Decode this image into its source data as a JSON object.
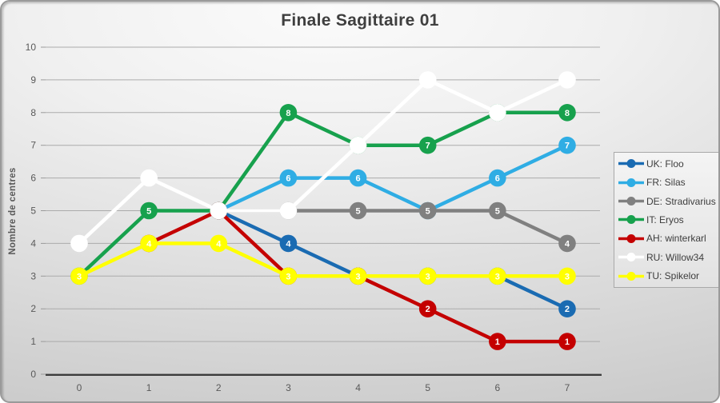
{
  "chart_data": {
    "type": "line",
    "title": "Finale Sagittaire 01",
    "xlabel": "",
    "ylabel": "Nombre de centres",
    "x_ticks": [
      "0",
      "1",
      "2",
      "3",
      "4",
      "5",
      "6",
      "7"
    ],
    "y_ticks": [
      "0",
      "1",
      "2",
      "3",
      "4",
      "5",
      "6",
      "7",
      "8",
      "9",
      "10"
    ],
    "ylim": [
      0,
      10
    ],
    "grid": true,
    "legend_position": "right",
    "marker_label_color": "#ffffff",
    "gridline_color": "#ababab",
    "axis_color": "#3c3c3c",
    "series": [
      {
        "name": "UK: Floo",
        "color": "#1a6bb2",
        "points": [
          [
            2,
            5
          ],
          [
            3,
            4
          ],
          [
            4,
            3
          ],
          [
            5,
            3
          ],
          [
            6,
            3
          ],
          [
            7,
            2
          ]
        ]
      },
      {
        "name": "FR: Silas",
        "color": "#2fade4",
        "points": [
          [
            2,
            5
          ],
          [
            3,
            6
          ],
          [
            4,
            6
          ],
          [
            5,
            5
          ],
          [
            6,
            6
          ],
          [
            7,
            7
          ]
        ]
      },
      {
        "name": "DE: Stradivarius",
        "color": "#808080",
        "points": [
          [
            2,
            5
          ],
          [
            3,
            5
          ],
          [
            4,
            5
          ],
          [
            5,
            5
          ],
          [
            6,
            5
          ],
          [
            7,
            4
          ]
        ]
      },
      {
        "name": "IT: Eryos",
        "color": "#17a14d",
        "points": [
          [
            0,
            3
          ],
          [
            1,
            5
          ],
          [
            2,
            5
          ],
          [
            3,
            8
          ],
          [
            4,
            7
          ],
          [
            5,
            7
          ],
          [
            6,
            8
          ],
          [
            7,
            8
          ]
        ]
      },
      {
        "name": "AH: winterkarl",
        "color": "#c40000",
        "points": [
          [
            1,
            4
          ],
          [
            2,
            5
          ],
          [
            3,
            3
          ],
          [
            4,
            3
          ],
          [
            5,
            2
          ],
          [
            6,
            1
          ],
          [
            7,
            1
          ]
        ]
      },
      {
        "name": "RU: Willow34",
        "color": "#ffffff",
        "points": [
          [
            0,
            4
          ],
          [
            1,
            6
          ],
          [
            2,
            5
          ],
          [
            3,
            5
          ],
          [
            4,
            7
          ],
          [
            5,
            9
          ],
          [
            6,
            8
          ],
          [
            7,
            9
          ]
        ]
      },
      {
        "name": "TU: Spikelor",
        "color": "#ffff00",
        "points": [
          [
            0,
            3
          ],
          [
            1,
            4
          ],
          [
            2,
            4
          ],
          [
            3,
            3
          ],
          [
            4,
            3
          ],
          [
            5,
            3
          ],
          [
            6,
            3
          ],
          [
            7,
            3
          ]
        ]
      }
    ]
  }
}
